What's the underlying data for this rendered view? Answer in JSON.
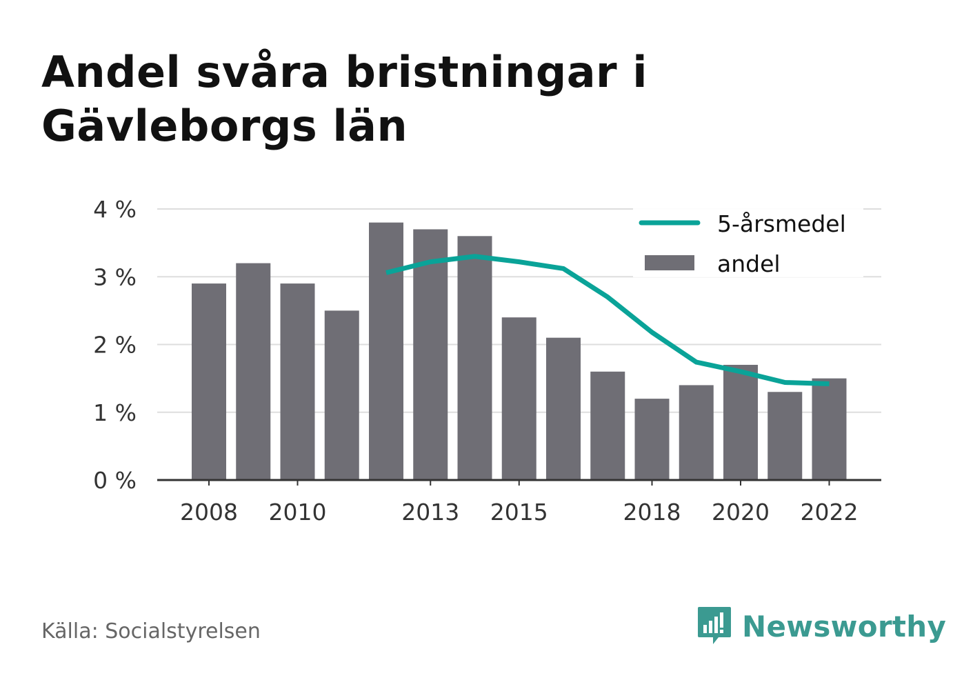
{
  "title": "Andel svåra bristningar i Gävleborgs län",
  "source": "Källa: Socialstyrelsen",
  "brand": {
    "name": "Newsworthy",
    "icon": "newsworthy-logo-icon",
    "color": "#3b9a91"
  },
  "colors": {
    "bar": "#6f6e75",
    "line": "#0aa398",
    "grid": "#dddddd",
    "axis": "#333333"
  },
  "chart_data": {
    "type": "bar",
    "title": "Andel svåra bristningar i Gävleborgs län",
    "xlabel": "",
    "ylabel": "",
    "ylim": [
      0,
      4
    ],
    "yticks": [
      0,
      1,
      2,
      3,
      4
    ],
    "ytick_labels": [
      "0 %",
      "1 %",
      "2 %",
      "3 %",
      "4 %"
    ],
    "xtick_labels": [
      "2008",
      "2010",
      "2013",
      "2015",
      "2018",
      "2020",
      "2022"
    ],
    "grid": true,
    "legend_position": "top-right",
    "categories": [
      "2008",
      "2009",
      "2010",
      "2011",
      "2012",
      "2013",
      "2014",
      "2015",
      "2016",
      "2017",
      "2018",
      "2019",
      "2020",
      "2021",
      "2022"
    ],
    "series": [
      {
        "name": "andel",
        "type": "bar",
        "values": [
          2.9,
          3.2,
          2.9,
          2.5,
          3.8,
          3.7,
          3.6,
          2.4,
          2.1,
          1.6,
          1.2,
          1.4,
          1.7,
          1.3,
          1.5
        ]
      },
      {
        "name": "5-årsmedel",
        "type": "line",
        "values": [
          null,
          null,
          null,
          null,
          3.06,
          3.22,
          3.3,
          3.22,
          3.12,
          2.7,
          2.18,
          1.74,
          1.6,
          1.44,
          1.42
        ]
      }
    ]
  }
}
